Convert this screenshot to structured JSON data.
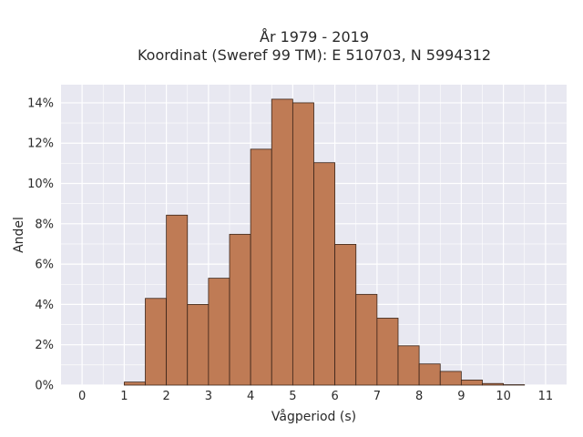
{
  "chart_data": {
    "type": "bar",
    "title_lines": [
      "År 1979 - 2019",
      "Koordinat (Sweref 99 TM): E 510703, N 5994312"
    ],
    "xlabel": "Vågperiod (s)",
    "ylabel": "Andel",
    "xlim": [
      -0.5,
      11.5
    ],
    "ylim": [
      0,
      0.149
    ],
    "x_ticks": [
      0,
      1,
      2,
      3,
      4,
      5,
      6,
      7,
      8,
      9,
      10,
      11
    ],
    "x_tick_labels": [
      "0",
      "1",
      "2",
      "3",
      "4",
      "5",
      "6",
      "7",
      "8",
      "9",
      "10",
      "11"
    ],
    "y_ticks": [
      0,
      0.02,
      0.04,
      0.06,
      0.08,
      0.1,
      0.12,
      0.14
    ],
    "y_tick_labels": [
      "0%",
      "2%",
      "4%",
      "6%",
      "8%",
      "10%",
      "12%",
      "14%"
    ],
    "bin_width": 0.5,
    "bins": [
      {
        "start": 1.0,
        "value": 0.0015
      },
      {
        "start": 1.5,
        "value": 0.043
      },
      {
        "start": 2.0,
        "value": 0.0843
      },
      {
        "start": 2.5,
        "value": 0.04
      },
      {
        "start": 3.0,
        "value": 0.053
      },
      {
        "start": 3.5,
        "value": 0.0748
      },
      {
        "start": 4.0,
        "value": 0.117
      },
      {
        "start": 4.5,
        "value": 0.1418
      },
      {
        "start": 5.0,
        "value": 0.14
      },
      {
        "start": 5.5,
        "value": 0.1103
      },
      {
        "start": 6.0,
        "value": 0.0698
      },
      {
        "start": 6.5,
        "value": 0.045
      },
      {
        "start": 7.0,
        "value": 0.0332
      },
      {
        "start": 7.5,
        "value": 0.0195
      },
      {
        "start": 8.0,
        "value": 0.0105
      },
      {
        "start": 8.5,
        "value": 0.0068
      },
      {
        "start": 9.0,
        "value": 0.0025
      },
      {
        "start": 9.5,
        "value": 0.0008
      },
      {
        "start": 10.0,
        "value": 0.0002
      }
    ],
    "bar_color": "#bf7b55",
    "bar_edge_color": "#3a2418",
    "plot_background": "#e8e8f1",
    "grid": true,
    "grid_color": "#ffffff"
  }
}
